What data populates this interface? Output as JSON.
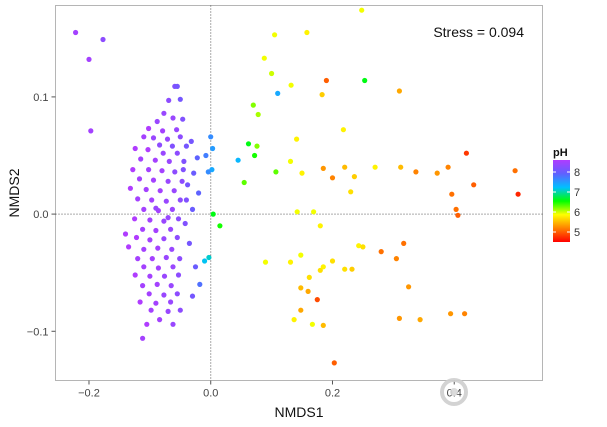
{
  "chart_data": {
    "type": "scatter",
    "title": "",
    "xlabel": "NMDS1",
    "ylabel": "NMDS2",
    "xlim": [
      -0.255,
      0.545
    ],
    "ylim": [
      -0.142,
      0.178
    ],
    "x_ticks": [
      -0.2,
      0.0,
      0.2,
      0.4
    ],
    "x_tick_labels": [
      "−0.2",
      "0.0",
      "0.2",
      "0.4"
    ],
    "y_ticks": [
      -0.1,
      0.0,
      0.1
    ],
    "y_tick_labels": [
      "−0.1",
      "0.0",
      "0.1"
    ],
    "reference_lines": {
      "x": 0,
      "y": 0,
      "style": "dotted"
    },
    "grid": false,
    "annotation": "Stress = 0.094",
    "legend": {
      "title": "pH",
      "placement": "right",
      "type": "colorbar",
      "range": [
        4.5,
        8.6
      ],
      "ticks": [
        5,
        6,
        7,
        8
      ],
      "colors": [
        "#ff0000",
        "#ff8000",
        "#ffff00",
        "#00ff00",
        "#00c0ff",
        "#6060ff",
        "#b03cff"
      ]
    },
    "points": [
      {
        "x": -0.222,
        "y": 0.155,
        "ph": 8.5
      },
      {
        "x": -0.2,
        "y": 0.132,
        "ph": 8.5
      },
      {
        "x": -0.177,
        "y": 0.149,
        "ph": 8.3
      },
      {
        "x": -0.197,
        "y": 0.071,
        "ph": 8.5
      },
      {
        "x": -0.059,
        "y": 0.109,
        "ph": 8.2
      },
      {
        "x": -0.055,
        "y": 0.109,
        "ph": 8.1
      },
      {
        "x": -0.069,
        "y": 0.097,
        "ph": 8.3
      },
      {
        "x": -0.05,
        "y": 0.098,
        "ph": 8.1
      },
      {
        "x": -0.077,
        "y": 0.086,
        "ph": 8.4
      },
      {
        "x": -0.062,
        "y": 0.082,
        "ph": 8.4
      },
      {
        "x": -0.046,
        "y": 0.081,
        "ph": 8.2
      },
      {
        "x": -0.088,
        "y": 0.079,
        "ph": 8.4
      },
      {
        "x": -0.102,
        "y": 0.073,
        "ph": 8.6
      },
      {
        "x": -0.079,
        "y": 0.071,
        "ph": 8.5
      },
      {
        "x": -0.056,
        "y": 0.072,
        "ph": 8.4
      },
      {
        "x": -0.11,
        "y": 0.066,
        "ph": 8.5
      },
      {
        "x": -0.094,
        "y": 0.065,
        "ph": 8.4
      },
      {
        "x": -0.071,
        "y": 0.064,
        "ph": 8.4
      },
      {
        "x": -0.05,
        "y": 0.066,
        "ph": 8.3
      },
      {
        "x": -0.084,
        "y": 0.059,
        "ph": 8.3
      },
      {
        "x": -0.063,
        "y": 0.058,
        "ph": 8.2
      },
      {
        "x": -0.04,
        "y": 0.058,
        "ph": 8.1
      },
      {
        "x": -0.124,
        "y": 0.056,
        "ph": 8.6
      },
      {
        "x": -0.103,
        "y": 0.055,
        "ph": 8.6
      },
      {
        "x": -0.078,
        "y": 0.052,
        "ph": 8.4
      },
      {
        "x": -0.055,
        "y": 0.052,
        "ph": 8.3
      },
      {
        "x": -0.115,
        "y": 0.047,
        "ph": 8.5
      },
      {
        "x": -0.091,
        "y": 0.046,
        "ph": 8.5
      },
      {
        "x": -0.068,
        "y": 0.045,
        "ph": 8.4
      },
      {
        "x": -0.044,
        "y": 0.045,
        "ph": 8.2
      },
      {
        "x": -0.128,
        "y": 0.038,
        "ph": 8.6
      },
      {
        "x": -0.102,
        "y": 0.038,
        "ph": 8.5
      },
      {
        "x": -0.08,
        "y": 0.037,
        "ph": 8.5
      },
      {
        "x": -0.059,
        "y": 0.036,
        "ph": 8.3
      },
      {
        "x": -0.117,
        "y": 0.03,
        "ph": 8.5
      },
      {
        "x": -0.094,
        "y": 0.029,
        "ph": 8.5
      },
      {
        "x": -0.07,
        "y": 0.028,
        "ph": 8.4
      },
      {
        "x": -0.047,
        "y": 0.028,
        "ph": 8.3
      },
      {
        "x": -0.132,
        "y": 0.022,
        "ph": 8.6
      },
      {
        "x": -0.106,
        "y": 0.021,
        "ph": 8.5
      },
      {
        "x": -0.083,
        "y": 0.02,
        "ph": 8.5
      },
      {
        "x": -0.06,
        "y": 0.02,
        "ph": 8.4
      },
      {
        "x": -0.12,
        "y": 0.013,
        "ph": 8.5
      },
      {
        "x": -0.097,
        "y": 0.012,
        "ph": 8.5
      },
      {
        "x": -0.073,
        "y": 0.011,
        "ph": 8.4
      },
      {
        "x": -0.05,
        "y": 0.012,
        "ph": 8.3
      },
      {
        "x": -0.11,
        "y": 0.004,
        "ph": 8.5
      },
      {
        "x": -0.086,
        "y": 0.003,
        "ph": 8.5
      },
      {
        "x": -0.063,
        "y": 0.004,
        "ph": 8.4
      },
      {
        "x": -0.125,
        "y": -0.004,
        "ph": 8.6
      },
      {
        "x": -0.1,
        "y": -0.005,
        "ph": 8.5
      },
      {
        "x": -0.077,
        "y": -0.006,
        "ph": 8.4
      },
      {
        "x": -0.053,
        "y": -0.004,
        "ph": 8.3
      },
      {
        "x": -0.112,
        "y": -0.013,
        "ph": 8.5
      },
      {
        "x": -0.09,
        "y": -0.014,
        "ph": 8.5
      },
      {
        "x": -0.066,
        "y": -0.013,
        "ph": 8.4
      },
      {
        "x": -0.14,
        "y": -0.017,
        "ph": 8.6
      },
      {
        "x": -0.122,
        "y": -0.02,
        "ph": 8.6
      },
      {
        "x": -0.1,
        "y": -0.022,
        "ph": 8.5
      },
      {
        "x": -0.077,
        "y": -0.021,
        "ph": 8.4
      },
      {
        "x": -0.055,
        "y": -0.02,
        "ph": 8.3
      },
      {
        "x": -0.135,
        "y": -0.028,
        "ph": 8.6
      },
      {
        "x": -0.11,
        "y": -0.03,
        "ph": 8.5
      },
      {
        "x": -0.087,
        "y": -0.029,
        "ph": 8.5
      },
      {
        "x": -0.064,
        "y": -0.03,
        "ph": 8.4
      },
      {
        "x": -0.12,
        "y": -0.038,
        "ph": 8.5
      },
      {
        "x": -0.096,
        "y": -0.038,
        "ph": 8.5
      },
      {
        "x": -0.073,
        "y": -0.037,
        "ph": 8.4
      },
      {
        "x": -0.051,
        "y": -0.038,
        "ph": 8.3
      },
      {
        "x": -0.11,
        "y": -0.045,
        "ph": 8.5
      },
      {
        "x": -0.086,
        "y": -0.046,
        "ph": 8.5
      },
      {
        "x": -0.062,
        "y": -0.045,
        "ph": 8.4
      },
      {
        "x": -0.124,
        "y": -0.052,
        "ph": 8.6
      },
      {
        "x": -0.1,
        "y": -0.053,
        "ph": 8.5
      },
      {
        "x": -0.076,
        "y": -0.053,
        "ph": 8.4
      },
      {
        "x": -0.053,
        "y": -0.052,
        "ph": 8.3
      },
      {
        "x": -0.112,
        "y": -0.061,
        "ph": 8.5
      },
      {
        "x": -0.088,
        "y": -0.06,
        "ph": 8.5
      },
      {
        "x": -0.065,
        "y": -0.061,
        "ph": 8.4
      },
      {
        "x": -0.101,
        "y": -0.068,
        "ph": 8.5
      },
      {
        "x": -0.077,
        "y": -0.069,
        "ph": 8.4
      },
      {
        "x": -0.055,
        "y": -0.068,
        "ph": 8.3
      },
      {
        "x": -0.116,
        "y": -0.075,
        "ph": 8.6
      },
      {
        "x": -0.09,
        "y": -0.076,
        "ph": 8.5
      },
      {
        "x": -0.066,
        "y": -0.075,
        "ph": 8.4
      },
      {
        "x": -0.098,
        "y": -0.082,
        "ph": 8.5
      },
      {
        "x": -0.07,
        "y": -0.083,
        "ph": 8.4
      },
      {
        "x": -0.05,
        "y": -0.082,
        "ph": 8.3
      },
      {
        "x": -0.084,
        "y": -0.09,
        "ph": 8.5
      },
      {
        "x": -0.062,
        "y": -0.094,
        "ph": 8.4
      },
      {
        "x": -0.112,
        "y": -0.106,
        "ph": 8.5
      },
      {
        "x": -0.105,
        "y": -0.094,
        "ph": 8.6
      },
      {
        "x": -0.09,
        "y": 0.005,
        "ph": 8.4
      },
      {
        "x": -0.07,
        "y": -0.003,
        "ph": 8.4
      },
      {
        "x": -0.045,
        "y": 0.038,
        "ph": 8.2
      },
      {
        "x": -0.038,
        "y": 0.025,
        "ph": 8.1
      },
      {
        "x": -0.04,
        "y": 0.012,
        "ph": 8.2
      },
      {
        "x": -0.042,
        "y": -0.008,
        "ph": 8.2
      },
      {
        "x": -0.03,
        "y": 0.004,
        "ph": 8.0
      },
      {
        "x": -0.035,
        "y": -0.025,
        "ph": 8.1
      },
      {
        "x": -0.028,
        "y": 0.035,
        "ph": 8.0
      },
      {
        "x": -0.022,
        "y": 0.048,
        "ph": 7.9
      },
      {
        "x": -0.02,
        "y": 0.018,
        "ph": 7.9
      },
      {
        "x": -0.032,
        "y": 0.062,
        "ph": 8.1
      },
      {
        "x": -0.025,
        "y": -0.045,
        "ph": 8.0
      },
      {
        "x": -0.018,
        "y": -0.06,
        "ph": 7.8
      },
      {
        "x": -0.03,
        "y": -0.07,
        "ph": 8.1
      },
      {
        "x": 0.0,
        "y": 0.066,
        "ph": 7.6
      },
      {
        "x": 0.003,
        "y": 0.056,
        "ph": 7.5
      },
      {
        "x": -0.008,
        "y": 0.05,
        "ph": 7.7
      },
      {
        "x": 0.002,
        "y": 0.038,
        "ph": 7.4
      },
      {
        "x": -0.004,
        "y": 0.036,
        "ph": 7.6
      },
      {
        "x": -0.003,
        "y": -0.037,
        "ph": 7.1
      },
      {
        "x": -0.01,
        "y": -0.04,
        "ph": 7.2
      },
      {
        "x": 0.004,
        "y": 0.0,
        "ph": 6.6
      },
      {
        "x": 0.015,
        "y": -0.01,
        "ph": 6.5
      },
      {
        "x": 0.055,
        "y": 0.027,
        "ph": 6.3
      },
      {
        "x": 0.045,
        "y": 0.046,
        "ph": 7.3
      },
      {
        "x": 0.062,
        "y": 0.06,
        "ph": 6.6
      },
      {
        "x": 0.072,
        "y": 0.05,
        "ph": 6.5
      },
      {
        "x": 0.076,
        "y": 0.058,
        "ph": 6.2
      },
      {
        "x": 0.07,
        "y": 0.093,
        "ph": 6.2
      },
      {
        "x": 0.078,
        "y": 0.085,
        "ph": 6.1
      },
      {
        "x": 0.088,
        "y": 0.133,
        "ph": 5.9
      },
      {
        "x": 0.105,
        "y": 0.153,
        "ph": 5.9
      },
      {
        "x": 0.11,
        "y": 0.103,
        "ph": 7.4
      },
      {
        "x": 0.132,
        "y": 0.11,
        "ph": 5.9
      },
      {
        "x": 0.158,
        "y": 0.155,
        "ph": 5.8
      },
      {
        "x": 0.107,
        "y": 0.036,
        "ph": 6.3
      },
      {
        "x": 0.131,
        "y": 0.045,
        "ph": 5.9
      },
      {
        "x": 0.141,
        "y": 0.064,
        "ph": 5.8
      },
      {
        "x": 0.15,
        "y": 0.035,
        "ph": 5.8
      },
      {
        "x": 0.142,
        "y": 0.002,
        "ph": 5.9
      },
      {
        "x": 0.183,
        "y": 0.102,
        "ph": 5.6
      },
      {
        "x": 0.19,
        "y": 0.114,
        "ph": 5.0
      },
      {
        "x": 0.185,
        "y": 0.039,
        "ph": 5.3
      },
      {
        "x": 0.2,
        "y": 0.031,
        "ph": 5.2
      },
      {
        "x": 0.218,
        "y": 0.072,
        "ph": 5.8
      },
      {
        "x": 0.22,
        "y": 0.04,
        "ph": 5.5
      },
      {
        "x": 0.23,
        "y": 0.019,
        "ph": 5.7
      },
      {
        "x": 0.236,
        "y": 0.032,
        "ph": 5.6
      },
      {
        "x": 0.248,
        "y": 0.174,
        "ph": 5.9
      },
      {
        "x": 0.253,
        "y": 0.114,
        "ph": 6.6
      },
      {
        "x": 0.27,
        "y": 0.04,
        "ph": 5.8
      },
      {
        "x": 0.31,
        "y": 0.105,
        "ph": 5.4
      },
      {
        "x": 0.312,
        "y": 0.04,
        "ph": 5.5
      },
      {
        "x": 0.337,
        "y": 0.036,
        "ph": 5.2
      },
      {
        "x": 0.169,
        "y": 0.002,
        "ph": 5.9
      },
      {
        "x": 0.18,
        "y": -0.01,
        "ph": 5.8
      },
      {
        "x": 0.09,
        "y": -0.041,
        "ph": 5.9
      },
      {
        "x": 0.131,
        "y": -0.041,
        "ph": 5.8
      },
      {
        "x": 0.148,
        "y": -0.035,
        "ph": 5.9
      },
      {
        "x": 0.162,
        "y": -0.054,
        "ph": 5.7
      },
      {
        "x": 0.18,
        "y": -0.048,
        "ph": 5.7
      },
      {
        "x": 0.185,
        "y": -0.045,
        "ph": 5.8
      },
      {
        "x": 0.2,
        "y": -0.04,
        "ph": 5.7
      },
      {
        "x": 0.22,
        "y": -0.047,
        "ph": 5.7
      },
      {
        "x": 0.232,
        "y": -0.047,
        "ph": 5.6
      },
      {
        "x": 0.243,
        "y": -0.027,
        "ph": 5.8
      },
      {
        "x": 0.25,
        "y": -0.028,
        "ph": 5.7
      },
      {
        "x": 0.28,
        "y": -0.032,
        "ph": 5.1
      },
      {
        "x": 0.305,
        "y": -0.038,
        "ph": 5.2
      },
      {
        "x": 0.317,
        "y": -0.025,
        "ph": 5.1
      },
      {
        "x": 0.148,
        "y": -0.063,
        "ph": 5.5
      },
      {
        "x": 0.16,
        "y": -0.066,
        "ph": 5.4
      },
      {
        "x": 0.148,
        "y": -0.082,
        "ph": 5.4
      },
      {
        "x": 0.175,
        "y": -0.073,
        "ph": 4.9
      },
      {
        "x": 0.137,
        "y": -0.09,
        "ph": 5.8
      },
      {
        "x": 0.167,
        "y": -0.094,
        "ph": 5.9
      },
      {
        "x": 0.185,
        "y": -0.095,
        "ph": 5.5
      },
      {
        "x": 0.203,
        "y": -0.127,
        "ph": 5.0
      },
      {
        "x": 0.31,
        "y": -0.089,
        "ph": 5.3
      },
      {
        "x": 0.325,
        "y": -0.062,
        "ph": 5.3
      },
      {
        "x": 0.344,
        "y": -0.09,
        "ph": 5.4
      },
      {
        "x": 0.394,
        "y": -0.085,
        "ph": 5.3
      },
      {
        "x": 0.417,
        "y": -0.085,
        "ph": 5.2
      },
      {
        "x": 0.372,
        "y": 0.035,
        "ph": 5.3
      },
      {
        "x": 0.39,
        "y": 0.04,
        "ph": 5.2
      },
      {
        "x": 0.396,
        "y": 0.017,
        "ph": 5.1
      },
      {
        "x": 0.403,
        "y": 0.004,
        "ph": 5.1
      },
      {
        "x": 0.406,
        "y": -0.001,
        "ph": 5.0
      },
      {
        "x": 0.42,
        "y": 0.052,
        "ph": 4.8
      },
      {
        "x": 0.432,
        "y": 0.025,
        "ph": 5.0
      },
      {
        "x": 0.5,
        "y": 0.037,
        "ph": 5.1
      },
      {
        "x": 0.505,
        "y": 0.017,
        "ph": 4.7
      },
      {
        "x": 0.1,
        "y": 0.12,
        "ph": 6.0
      }
    ]
  }
}
